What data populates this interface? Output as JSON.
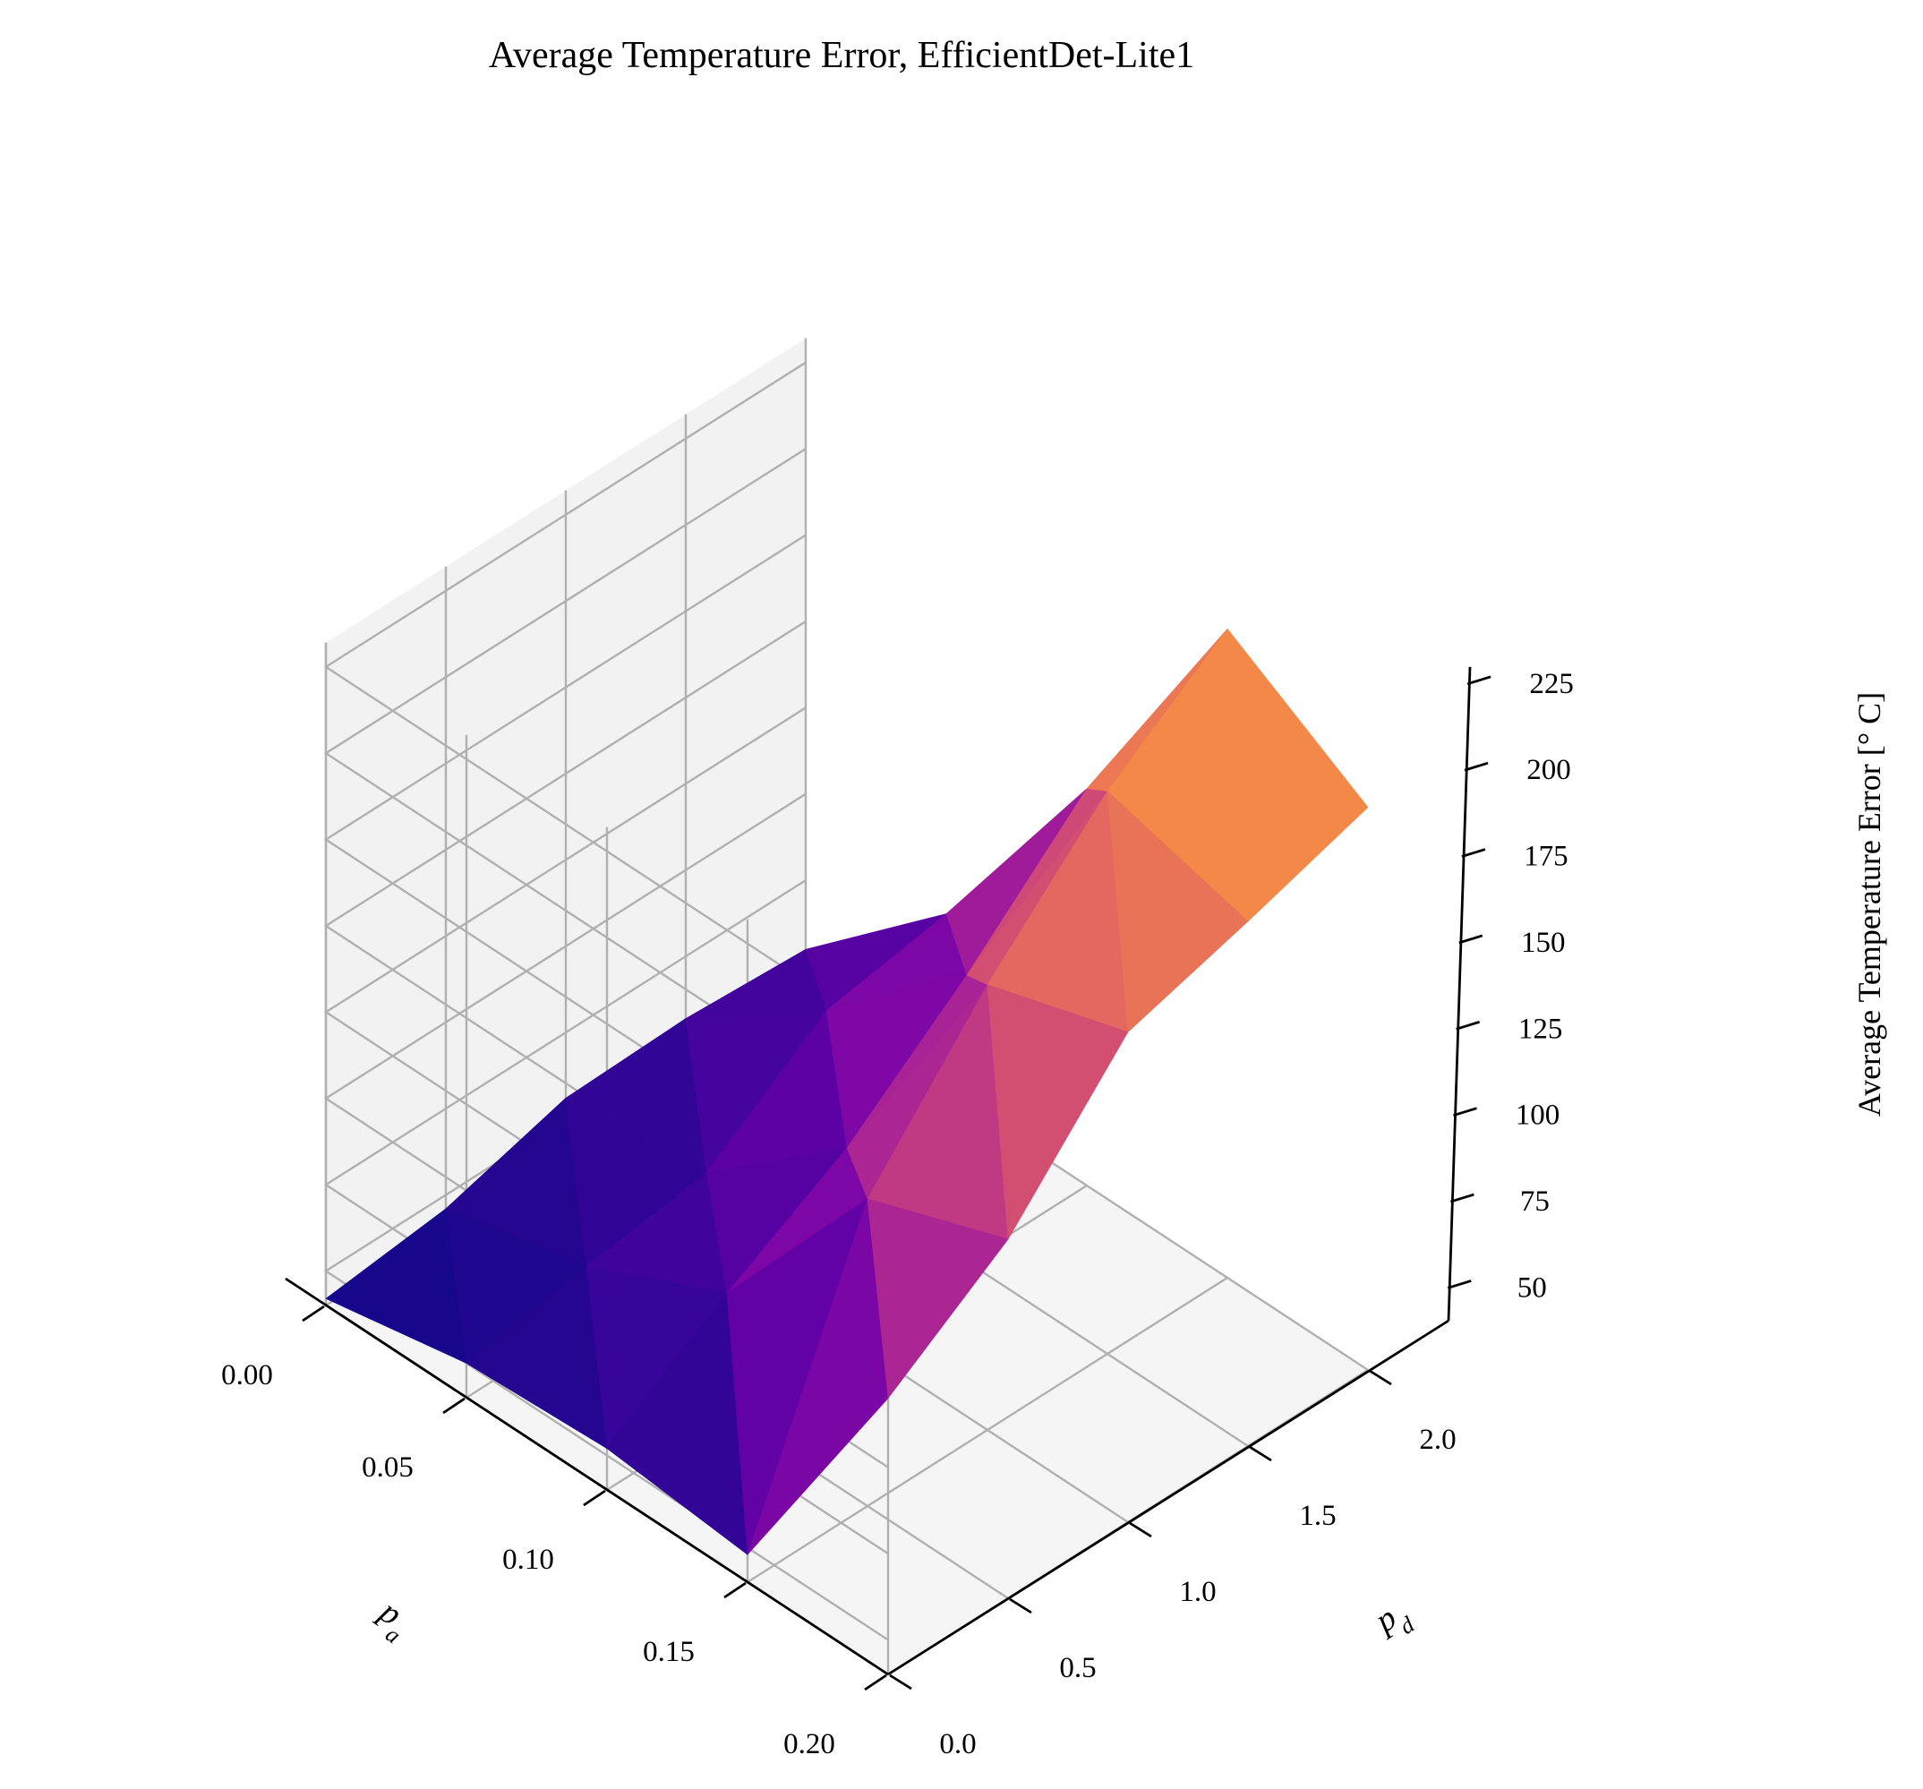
{
  "chart_data": {
    "type": "surface3d",
    "title": "Average Temperature Error, EfficientDet-Lite1",
    "x_axis": {
      "label": "p_a",
      "label_main": "p",
      "label_sub": "a",
      "values": [
        0.0,
        0.05,
        0.1,
        0.15,
        0.2
      ],
      "tick_labels": [
        "0.00",
        "0.05",
        "0.10",
        "0.15",
        "0.20"
      ],
      "range": [
        0.0,
        0.2
      ]
    },
    "y_axis": {
      "label": "p_d",
      "label_main": "p",
      "label_sub": "d",
      "values": [
        0.0,
        0.5,
        1.0,
        1.5,
        2.0
      ],
      "tick_labels": [
        "0.0",
        "0.5",
        "1.0",
        "1.5",
        "2.0"
      ],
      "range": [
        0.0,
        2.0
      ]
    },
    "z_axis": {
      "label": "Average Temperature Error [° C]",
      "tick_values": [
        50,
        75,
        100,
        125,
        150,
        175,
        200,
        225
      ],
      "tick_labels": [
        "50",
        "75",
        "100",
        "125",
        "150",
        "175",
        "200",
        "225"
      ],
      "range": [
        40,
        232
      ]
    },
    "z_grid": [
      [
        120,
        144,
        182,
        192,
        203
      ],
      [
        48,
        129,
        169,
        203,
        228
      ],
      [
        52,
        75,
        95,
        123,
        155
      ],
      [
        50,
        56,
        61,
        86,
        92
      ],
      [
        42,
        46,
        56,
        57,
        55
      ]
    ],
    "colormap": "plasma",
    "grid": true
  }
}
